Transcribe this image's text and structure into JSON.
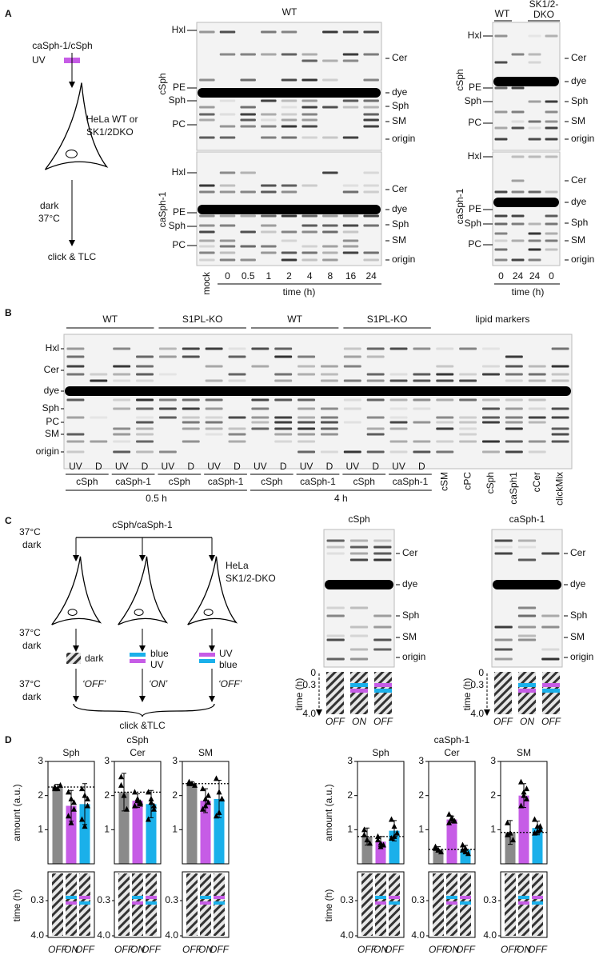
{
  "panel_a": {
    "label": "A",
    "scheme": {
      "compound": "caSph-1/cSph",
      "light": "UV",
      "cells": [
        "HeLa WT or",
        "SK1/2DKO"
      ],
      "incubation": [
        "dark",
        "37°C"
      ],
      "readout": "click & TLC"
    },
    "gel_time": {
      "header": "WT",
      "rows": [
        "cSph",
        "caSph-1"
      ],
      "left_labels": [
        "Hxl",
        "PE",
        "Sph",
        "PC"
      ],
      "right_labels": [
        "Cer",
        "dye",
        "Sph",
        "SM",
        "origin"
      ],
      "lanes": [
        "mock",
        "0",
        "0.5",
        "1",
        "2",
        "4",
        "8",
        "16",
        "24"
      ],
      "axis_label": "time (h)"
    },
    "gel_ko": {
      "headers": [
        "WT",
        "SK1/2-",
        "DKO"
      ],
      "rows": [
        "cSph",
        "caSph-1"
      ],
      "left_labels": [
        "Hxl",
        "PE",
        "Sph",
        "PC"
      ],
      "right_labels": [
        "Cer",
        "dye",
        "Sph",
        "SM",
        "origin"
      ],
      "lanes": [
        "0",
        "24",
        "24",
        "0"
      ],
      "axis_label": "time (h)"
    }
  },
  "panel_b": {
    "label": "B",
    "groups": [
      "WT",
      "S1PL-KO",
      "WT",
      "S1PL-KO"
    ],
    "markers_header": "lipid markers",
    "left_labels": [
      "Hxl",
      "Cer",
      "dye",
      "Sph",
      "PC",
      "SM",
      "origin"
    ],
    "treatments": [
      "UV",
      "D"
    ],
    "probes": [
      "cSph",
      "caSph-1"
    ],
    "times": [
      "0.5 h",
      "4 h"
    ],
    "markers": [
      "cSM",
      "cPC",
      "cSph",
      "caSph1",
      "cCer",
      "clickMix"
    ]
  },
  "panel_c": {
    "label": "C",
    "compound": "cSph/caSph-1",
    "condition": [
      "37°C",
      "dark"
    ],
    "cells": [
      "HeLa",
      "SK1/2-DKO"
    ],
    "protocols": [
      {
        "light": [
          "dark"
        ],
        "state": "‘OFF’"
      },
      {
        "light": [
          "blue",
          "UV"
        ],
        "state": "‘ON’"
      },
      {
        "light": [
          "UV",
          "blue"
        ],
        "state": "‘OFF’"
      }
    ],
    "readout": "click &TLC",
    "gels": [
      "cSph",
      "caSph-1"
    ],
    "right_labels": [
      "Cer",
      "dye",
      "Sph",
      "SM",
      "origin"
    ],
    "time_axis": {
      "label": "time (h)",
      "ticks": [
        "0",
        "0.3",
        "4.0"
      ]
    },
    "states": [
      "OFF",
      "ON",
      "OFF"
    ]
  },
  "panel_d": {
    "label": "D",
    "y_label": "amount (a.u.)",
    "ylim": [
      0,
      3
    ],
    "yticks": [
      1,
      2,
      3
    ],
    "colors": [
      "#8a8a8a",
      "#c65ce6",
      "#1ab0ea"
    ],
    "time_axis": {
      "label": "time (h)",
      "ticks": [
        "0.3",
        "4.0"
      ]
    },
    "states": [
      "OFF",
      "ON",
      "OFF"
    ],
    "groups": [
      {
        "title": "cSph",
        "plots": [
          {
            "title": "Sph",
            "values": [
              2.25,
              1.7,
              1.75
            ],
            "errors": [
              0.08,
              0.45,
              0.6
            ],
            "reference": 2.25,
            "points": [
              [
                2.25,
                2.2,
                2.3,
                2.2
              ],
              [
                2.1,
                1.9,
                1.6,
                1.4,
                1.2,
                1.8
              ],
              [
                2.2,
                2.0,
                1.7,
                1.3,
                1.1,
                1.9
              ]
            ]
          },
          {
            "title": "Cer",
            "values": [
              2.1,
              1.85,
              1.75
            ],
            "errors": [
              0.55,
              0.2,
              0.4
            ],
            "reference": 2.1,
            "points": [
              [
                2.55,
                2.0,
                1.6,
                2.3
              ],
              [
                2.1,
                1.85,
                1.8,
                1.7,
                1.9,
                1.75
              ],
              [
                2.1,
                1.9,
                1.6,
                1.3,
                1.8,
                1.7
              ]
            ]
          },
          {
            "title": "SM",
            "values": [
              2.35,
              1.85,
              1.9
            ],
            "errors": [
              0.05,
              0.35,
              0.55
            ],
            "reference": 2.35,
            "points": [
              [
                2.4,
                2.35,
                2.3,
                2.35
              ],
              [
                2.2,
                1.9,
                1.8,
                1.6,
                1.7,
                2.0
              ],
              [
                2.5,
                2.1,
                1.9,
                1.4,
                1.5,
                1.9
              ]
            ]
          }
        ]
      },
      {
        "title": "caSph-1",
        "plots": [
          {
            "title": "Sph",
            "values": [
              0.8,
              0.65,
              0.97
            ],
            "errors": [
              0.25,
              0.15,
              0.3
            ],
            "reference": 0.8,
            "points": [
              [
                1.0,
                0.7,
                0.6,
                0.85
              ],
              [
                0.8,
                0.6,
                0.55,
                0.7,
                0.5
              ],
              [
                1.3,
                1.1,
                0.9,
                0.75,
                0.8
              ]
            ]
          },
          {
            "title": "Cer",
            "values": [
              0.42,
              1.3,
              0.42
            ],
            "errors": [
              0.08,
              0.1,
              0.12
            ],
            "reference": 0.42,
            "points": [
              [
                0.45,
                0.4,
                0.35,
                0.5,
                0.4
              ],
              [
                1.45,
                1.3,
                1.25,
                1.2,
                1.35
              ],
              [
                0.55,
                0.45,
                0.3,
                0.4,
                0.35
              ]
            ]
          },
          {
            "title": "SM",
            "values": [
              0.92,
              2.0,
              1.05
            ],
            "errors": [
              0.35,
              0.35,
              0.2
            ],
            "reference": 0.92,
            "points": [
              [
                1.2,
                0.9,
                0.7,
                0.85
              ],
              [
                2.4,
                2.1,
                1.9,
                1.7,
                2.0,
                2.2
              ],
              [
                1.3,
                1.1,
                1.0,
                0.9,
                0.95,
                1.1
              ]
            ]
          }
        ]
      }
    ]
  }
}
